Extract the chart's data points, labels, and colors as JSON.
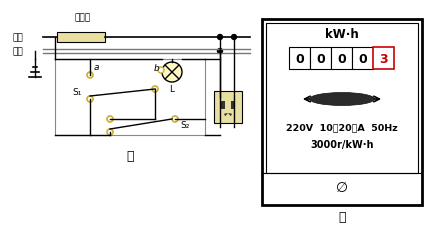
{
  "bg_color": "#ffffff",
  "line_color": "#000000",
  "fuse_color": "#e8e0a0",
  "socket_color": "#e8e0a0",
  "title_left": "甲",
  "title_right": "乙",
  "label_huoxian": "火线",
  "label_lingxian": "零线",
  "label_fuse": "熔断器",
  "label_a": "a",
  "label_b": "b",
  "label_L": "L",
  "label_S1": "S₁",
  "label_S2": "S₂",
  "meter_kwh": "kW·h",
  "meter_digits": [
    "0",
    "0",
    "0",
    "0",
    "3"
  ],
  "meter_line1": "220V  10（20）A  50Hz",
  "meter_line2": "3000r/kW·h",
  "node_color": "#000000",
  "switch_color": "#c8b030",
  "wire_gray": "#888888"
}
